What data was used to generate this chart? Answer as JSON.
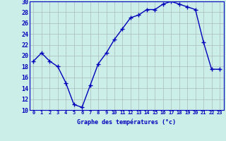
{
  "x": [
    0,
    1,
    2,
    3,
    4,
    5,
    6,
    7,
    8,
    9,
    10,
    11,
    12,
    13,
    14,
    15,
    16,
    17,
    18,
    19,
    20,
    21,
    22,
    23
  ],
  "y": [
    19,
    20.5,
    19,
    18,
    15,
    11,
    10.5,
    14.5,
    18.5,
    20.5,
    23,
    25,
    27,
    27.5,
    28.5,
    28.5,
    29.5,
    30,
    29.5,
    29,
    28.5,
    22.5,
    17.5,
    17.5
  ],
  "line_color": "#0000bb",
  "marker": "+",
  "marker_size": 4,
  "bg_color": "#cceee8",
  "grid_color": "#aabbbb",
  "xlabel": "Graphe des températures (°c)",
  "ylim": [
    10,
    30
  ],
  "xlim_min": -0.5,
  "xlim_max": 23.5,
  "yticks": [
    10,
    12,
    14,
    16,
    18,
    20,
    22,
    24,
    26,
    28,
    30
  ],
  "xticks": [
    0,
    1,
    2,
    3,
    4,
    5,
    6,
    7,
    8,
    9,
    10,
    11,
    12,
    13,
    14,
    15,
    16,
    17,
    18,
    19,
    20,
    21,
    22,
    23
  ],
  "tick_fontsize": 5,
  "xlabel_fontsize": 6,
  "ytick_fontsize": 6,
  "linewidth": 1.0,
  "marker_linewidth": 1.0
}
